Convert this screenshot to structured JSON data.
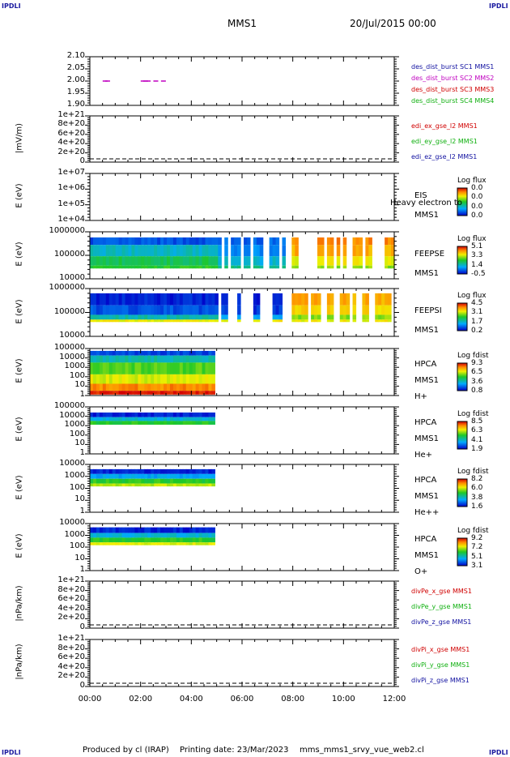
{
  "corner_tl": "IPDLI",
  "corner_tr": "IPDLI",
  "corner_bl": "IPDLI",
  "corner_br": "IPDLI",
  "header": {
    "spacecraft": "MMS1",
    "date": "20/Jul/2015 00:00"
  },
  "footer": {
    "produced": "Produced by cl (IRAP)",
    "printed": "Printing date: 23/Mar/2023",
    "file": "mms_mms1_srvy_vue_web2.cl"
  },
  "colors": {
    "sc1": "#1010a0",
    "sc2": "#c000c0",
    "sc3": "#d00000",
    "sc4": "#10b010",
    "x": "#d00000",
    "y": "#10b010",
    "z": "#1010a0"
  },
  "chart_data": [
    {
      "type": "scatter",
      "id": "p1",
      "yticks": [
        "2.10",
        "2.05",
        "2.00",
        "1.95",
        "1.90"
      ],
      "ylim": [
        1.9,
        2.1
      ],
      "x_hours": [
        0.6,
        0.7,
        2.1,
        2.2,
        2.3,
        2.6,
        2.9
      ],
      "y": [
        2.0,
        2.0,
        2.0,
        2.0,
        2.0,
        2.0,
        2.0
      ],
      "legend": [
        "des_dist_burst SC1 MMS1",
        "des_dist_burst SC2 MMS2",
        "des_dist_burst SC3 MMS3",
        "des_dist_burst SC4 MMS4"
      ]
    },
    {
      "type": "line",
      "id": "p2",
      "ylabel": "|mV/m)",
      "yticks": [
        "1e+21",
        "8e+20",
        "6e+20",
        "4e+20",
        "2e+20",
        "0"
      ],
      "legend": [
        "edi_ex_gse_l2 MMS1",
        "edi_ey_gse_l2 MMS1",
        "edi_ez_gse_l2 MMS1"
      ]
    },
    {
      "type": "heatmap",
      "id": "p3",
      "ylabel": "E (eV)",
      "yticks": [
        "1e+07",
        "1e+06",
        "1e+05",
        "1e+04"
      ],
      "inst": [
        "EIS",
        "MMS1"
      ],
      "inst_extra": "Heavy electron to",
      "cb_title": "Log flux",
      "cb_ticks": [
        "0.0",
        "0.0",
        "0.0",
        "0.0"
      ]
    },
    {
      "type": "heatmap",
      "id": "p4",
      "ylabel": "E (eV)",
      "yticks": [
        "1000000",
        "100000",
        "10000"
      ],
      "inst": [
        "FEEPSE",
        "MMS1"
      ],
      "cb_title": "Log flux",
      "cb_ticks": [
        "5.1",
        "3.3",
        "1.4",
        "-0.5"
      ]
    },
    {
      "type": "heatmap",
      "id": "p5",
      "ylabel": "E (eV)",
      "yticks": [
        "1000000",
        "100000",
        "10000"
      ],
      "inst": [
        "FEEPSI",
        "MMS1"
      ],
      "cb_title": "Log flux",
      "cb_ticks": [
        "4.5",
        "3.1",
        "1.7",
        "0.2"
      ]
    },
    {
      "type": "heatmap",
      "id": "p6",
      "ylabel": "E (eV)",
      "yticks": [
        "100000",
        "10000",
        "1000",
        "100",
        "10",
        "1"
      ],
      "inst": [
        "HPCA",
        "MMS1",
        "H+"
      ],
      "cb_title": "Log fdist",
      "cb_ticks": [
        "9.3",
        "6.5",
        "3.6",
        "0.8"
      ]
    },
    {
      "type": "heatmap",
      "id": "p7",
      "ylabel": "E (eV)",
      "yticks": [
        "100000",
        "10000",
        "1000",
        "100",
        "10",
        "1"
      ],
      "inst": [
        "HPCA",
        "MMS1",
        "He+"
      ],
      "cb_title": "Log fdist",
      "cb_ticks": [
        "8.5",
        "6.3",
        "4.1",
        "1.9"
      ]
    },
    {
      "type": "heatmap",
      "id": "p8",
      "ylabel": "E (eV)",
      "yticks": [
        "10000",
        "1000",
        "100",
        "10",
        "1"
      ],
      "inst": [
        "HPCA",
        "MMS1",
        "He++"
      ],
      "cb_title": "Log fdist",
      "cb_ticks": [
        "8.2",
        "6.0",
        "3.8",
        "1.6"
      ]
    },
    {
      "type": "heatmap",
      "id": "p9",
      "ylabel": "E (eV)",
      "yticks": [
        "10000",
        "1000",
        "100",
        "10",
        "1"
      ],
      "inst": [
        "HPCA",
        "MMS1",
        "O+"
      ],
      "cb_title": "Log fdist",
      "cb_ticks": [
        "9.2",
        "7.2",
        "5.1",
        "3.1"
      ]
    },
    {
      "type": "line",
      "id": "p10",
      "ylabel": "|nPa/km)",
      "yticks": [
        "1e+21",
        "8e+20",
        "6e+20",
        "4e+20",
        "2e+20",
        "0"
      ],
      "legend": [
        "divPe_x_gse MMS1",
        "divPe_y_gse MMS1",
        "divPe_z_gse MMS1"
      ]
    },
    {
      "type": "line",
      "id": "p11",
      "ylabel": "|nPa/km)",
      "yticks": [
        "1e+21",
        "8e+20",
        "6e+20",
        "4e+20",
        "2e+20",
        "0"
      ],
      "legend": [
        "divPi_x_gse MMS1",
        "divPi_y_gse MMS1",
        "divPi_z_gse MMS1"
      ]
    }
  ],
  "xaxis": {
    "ticks": [
      "00:00",
      "02:00",
      "04:00",
      "06:00",
      "08:00",
      "10:00",
      "12:00"
    ],
    "range_hours": [
      0,
      12
    ]
  }
}
